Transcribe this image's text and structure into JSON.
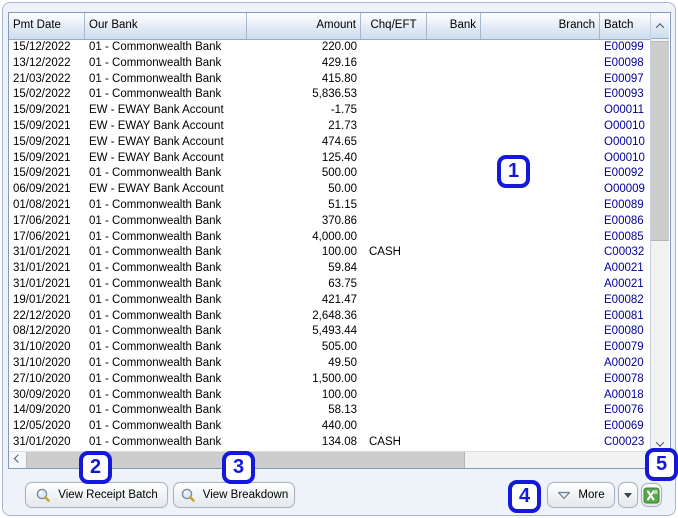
{
  "table": {
    "columns": [
      {
        "key": "date",
        "label": "Pmt Date"
      },
      {
        "key": "bank",
        "label": "Our Bank"
      },
      {
        "key": "amount",
        "label": "Amount"
      },
      {
        "key": "chq",
        "label": "Chq/EFT"
      },
      {
        "key": "bank_code",
        "label": "Bank"
      },
      {
        "key": "branch",
        "label": "Branch"
      },
      {
        "key": "batch",
        "label": "Batch"
      }
    ],
    "rows": [
      {
        "date": "15/12/2022",
        "bank": "01 - Commonwealth Bank",
        "amount": "220.00",
        "chq": "",
        "bank_code": "",
        "branch": "",
        "batch": "E00099"
      },
      {
        "date": "13/12/2022",
        "bank": "01 - Commonwealth Bank",
        "amount": "429.16",
        "chq": "",
        "bank_code": "",
        "branch": "",
        "batch": "E00098"
      },
      {
        "date": "21/03/2022",
        "bank": "01 - Commonwealth Bank",
        "amount": "415.80",
        "chq": "",
        "bank_code": "",
        "branch": "",
        "batch": "E00097"
      },
      {
        "date": "15/02/2022",
        "bank": "01 - Commonwealth Bank",
        "amount": "5,836.53",
        "chq": "",
        "bank_code": "",
        "branch": "",
        "batch": "E00093"
      },
      {
        "date": "15/09/2021",
        "bank": "EW - EWAY Bank Account",
        "amount": "-1.75",
        "chq": "",
        "bank_code": "",
        "branch": "",
        "batch": "O00011"
      },
      {
        "date": "15/09/2021",
        "bank": "EW - EWAY Bank Account",
        "amount": "21.73",
        "chq": "",
        "bank_code": "",
        "branch": "",
        "batch": "O00010"
      },
      {
        "date": "15/09/2021",
        "bank": "EW - EWAY Bank Account",
        "amount": "474.65",
        "chq": "",
        "bank_code": "",
        "branch": "",
        "batch": "O00010"
      },
      {
        "date": "15/09/2021",
        "bank": "EW - EWAY Bank Account",
        "amount": "125.40",
        "chq": "",
        "bank_code": "",
        "branch": "",
        "batch": "O00010"
      },
      {
        "date": "15/09/2021",
        "bank": "01 - Commonwealth Bank",
        "amount": "500.00",
        "chq": "",
        "bank_code": "",
        "branch": "",
        "batch": "E00092"
      },
      {
        "date": "06/09/2021",
        "bank": "EW - EWAY Bank Account",
        "amount": "50.00",
        "chq": "",
        "bank_code": "",
        "branch": "",
        "batch": "O00009"
      },
      {
        "date": "01/08/2021",
        "bank": "01 - Commonwealth Bank",
        "amount": "51.15",
        "chq": "",
        "bank_code": "",
        "branch": "",
        "batch": "E00089"
      },
      {
        "date": "17/06/2021",
        "bank": "01 - Commonwealth Bank",
        "amount": "370.86",
        "chq": "",
        "bank_code": "",
        "branch": "",
        "batch": "E00086"
      },
      {
        "date": "17/06/2021",
        "bank": "01 - Commonwealth Bank",
        "amount": "4,000.00",
        "chq": "",
        "bank_code": "",
        "branch": "",
        "batch": "E00085"
      },
      {
        "date": "31/01/2021",
        "bank": "01 - Commonwealth Bank",
        "amount": "100.00",
        "chq": "CASH",
        "bank_code": "",
        "branch": "",
        "batch": "C00032"
      },
      {
        "date": "31/01/2021",
        "bank": "01 - Commonwealth Bank",
        "amount": "59.84",
        "chq": "",
        "bank_code": "",
        "branch": "",
        "batch": "A00021"
      },
      {
        "date": "31/01/2021",
        "bank": "01 - Commonwealth Bank",
        "amount": "63.75",
        "chq": "",
        "bank_code": "",
        "branch": "",
        "batch": "A00021"
      },
      {
        "date": "19/01/2021",
        "bank": "01 - Commonwealth Bank",
        "amount": "421.47",
        "chq": "",
        "bank_code": "",
        "branch": "",
        "batch": "E00082"
      },
      {
        "date": "22/12/2020",
        "bank": "01 - Commonwealth Bank",
        "amount": "2,648.36",
        "chq": "",
        "bank_code": "",
        "branch": "",
        "batch": "E00081"
      },
      {
        "date": "08/12/2020",
        "bank": "01 - Commonwealth Bank",
        "amount": "5,493.44",
        "chq": "",
        "bank_code": "",
        "branch": "",
        "batch": "E00080"
      },
      {
        "date": "31/10/2020",
        "bank": "01 - Commonwealth Bank",
        "amount": "505.00",
        "chq": "",
        "bank_code": "",
        "branch": "",
        "batch": "E00079"
      },
      {
        "date": "31/10/2020",
        "bank": "01 - Commonwealth Bank",
        "amount": "49.50",
        "chq": "",
        "bank_code": "",
        "branch": "",
        "batch": "A00020"
      },
      {
        "date": "27/10/2020",
        "bank": "01 - Commonwealth Bank",
        "amount": "1,500.00",
        "chq": "",
        "bank_code": "",
        "branch": "",
        "batch": "E00078"
      },
      {
        "date": "30/09/2020",
        "bank": "01 - Commonwealth Bank",
        "amount": "100.00",
        "chq": "",
        "bank_code": "",
        "branch": "",
        "batch": "A00018"
      },
      {
        "date": "14/09/2020",
        "bank": "01 - Commonwealth Bank",
        "amount": "58.13",
        "chq": "",
        "bank_code": "",
        "branch": "",
        "batch": "E00076"
      },
      {
        "date": "12/05/2020",
        "bank": "01 - Commonwealth Bank",
        "amount": "440.00",
        "chq": "",
        "bank_code": "",
        "branch": "",
        "batch": "E00069"
      },
      {
        "date": "31/01/2020",
        "bank": "01 - Commonwealth Bank",
        "amount": "134.08",
        "chq": "CASH",
        "bank_code": "",
        "branch": "",
        "batch": "C00023"
      }
    ],
    "batch_text_color": "#000099"
  },
  "toolbar": {
    "view_receipt_batch_label": "View Receipt Batch",
    "view_breakdown_label": "View Breakdown",
    "more_label": "More"
  },
  "icons": {
    "search_icon": "magnifier",
    "more_icon": "chevron-down-outline",
    "dropdown_icon": "triangle-down",
    "excel_export_icon": "excel-green"
  },
  "badges": [
    "1",
    "2",
    "3",
    "4",
    "5"
  ],
  "badge_color": "#1418d8"
}
